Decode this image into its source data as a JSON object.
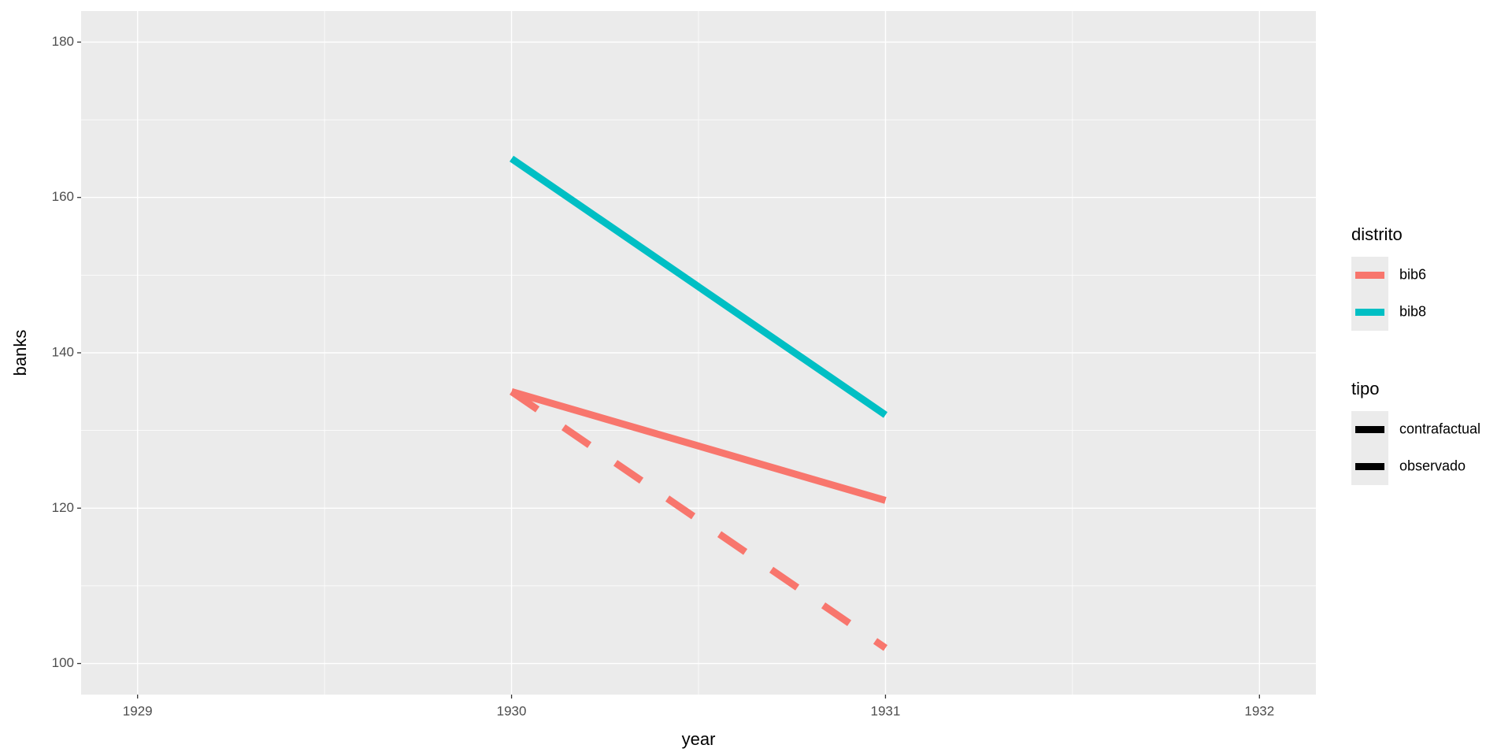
{
  "chart_data": {
    "type": "line",
    "x_label": "year",
    "y_label": "banks",
    "x": [
      1930,
      1931
    ],
    "xlim": [
      1928.849,
      1932.151
    ],
    "ylim": [
      96,
      184
    ],
    "xticks": [
      1929,
      1930,
      1931,
      1932
    ],
    "yticks": [
      100,
      120,
      140,
      160,
      180
    ],
    "grid": true,
    "legend_position": "right",
    "legends": [
      {
        "title": "distrito",
        "entries": [
          {
            "name": "bib6",
            "color": "#f8766d"
          },
          {
            "name": "bib8",
            "color": "#00bfc4"
          }
        ]
      },
      {
        "title": "tipo",
        "entries": [
          {
            "name": "contrafactual",
            "color": "#000000",
            "linetype": "dashed"
          },
          {
            "name": "observado",
            "color": "#000000",
            "linetype": "solid"
          }
        ]
      }
    ],
    "series": [
      {
        "distrito": "bib6",
        "tipo": "contrafactual",
        "color": "#f8766d",
        "linetype": "dashed",
        "values": [
          135,
          102
        ]
      },
      {
        "distrito": "bib6",
        "tipo": "observado",
        "color": "#f8766d",
        "linetype": "solid",
        "values": [
          135,
          121
        ]
      },
      {
        "distrito": "bib8",
        "tipo": "observado",
        "color": "#00bfc4",
        "linetype": "solid",
        "values": [
          165,
          132
        ]
      }
    ]
  }
}
